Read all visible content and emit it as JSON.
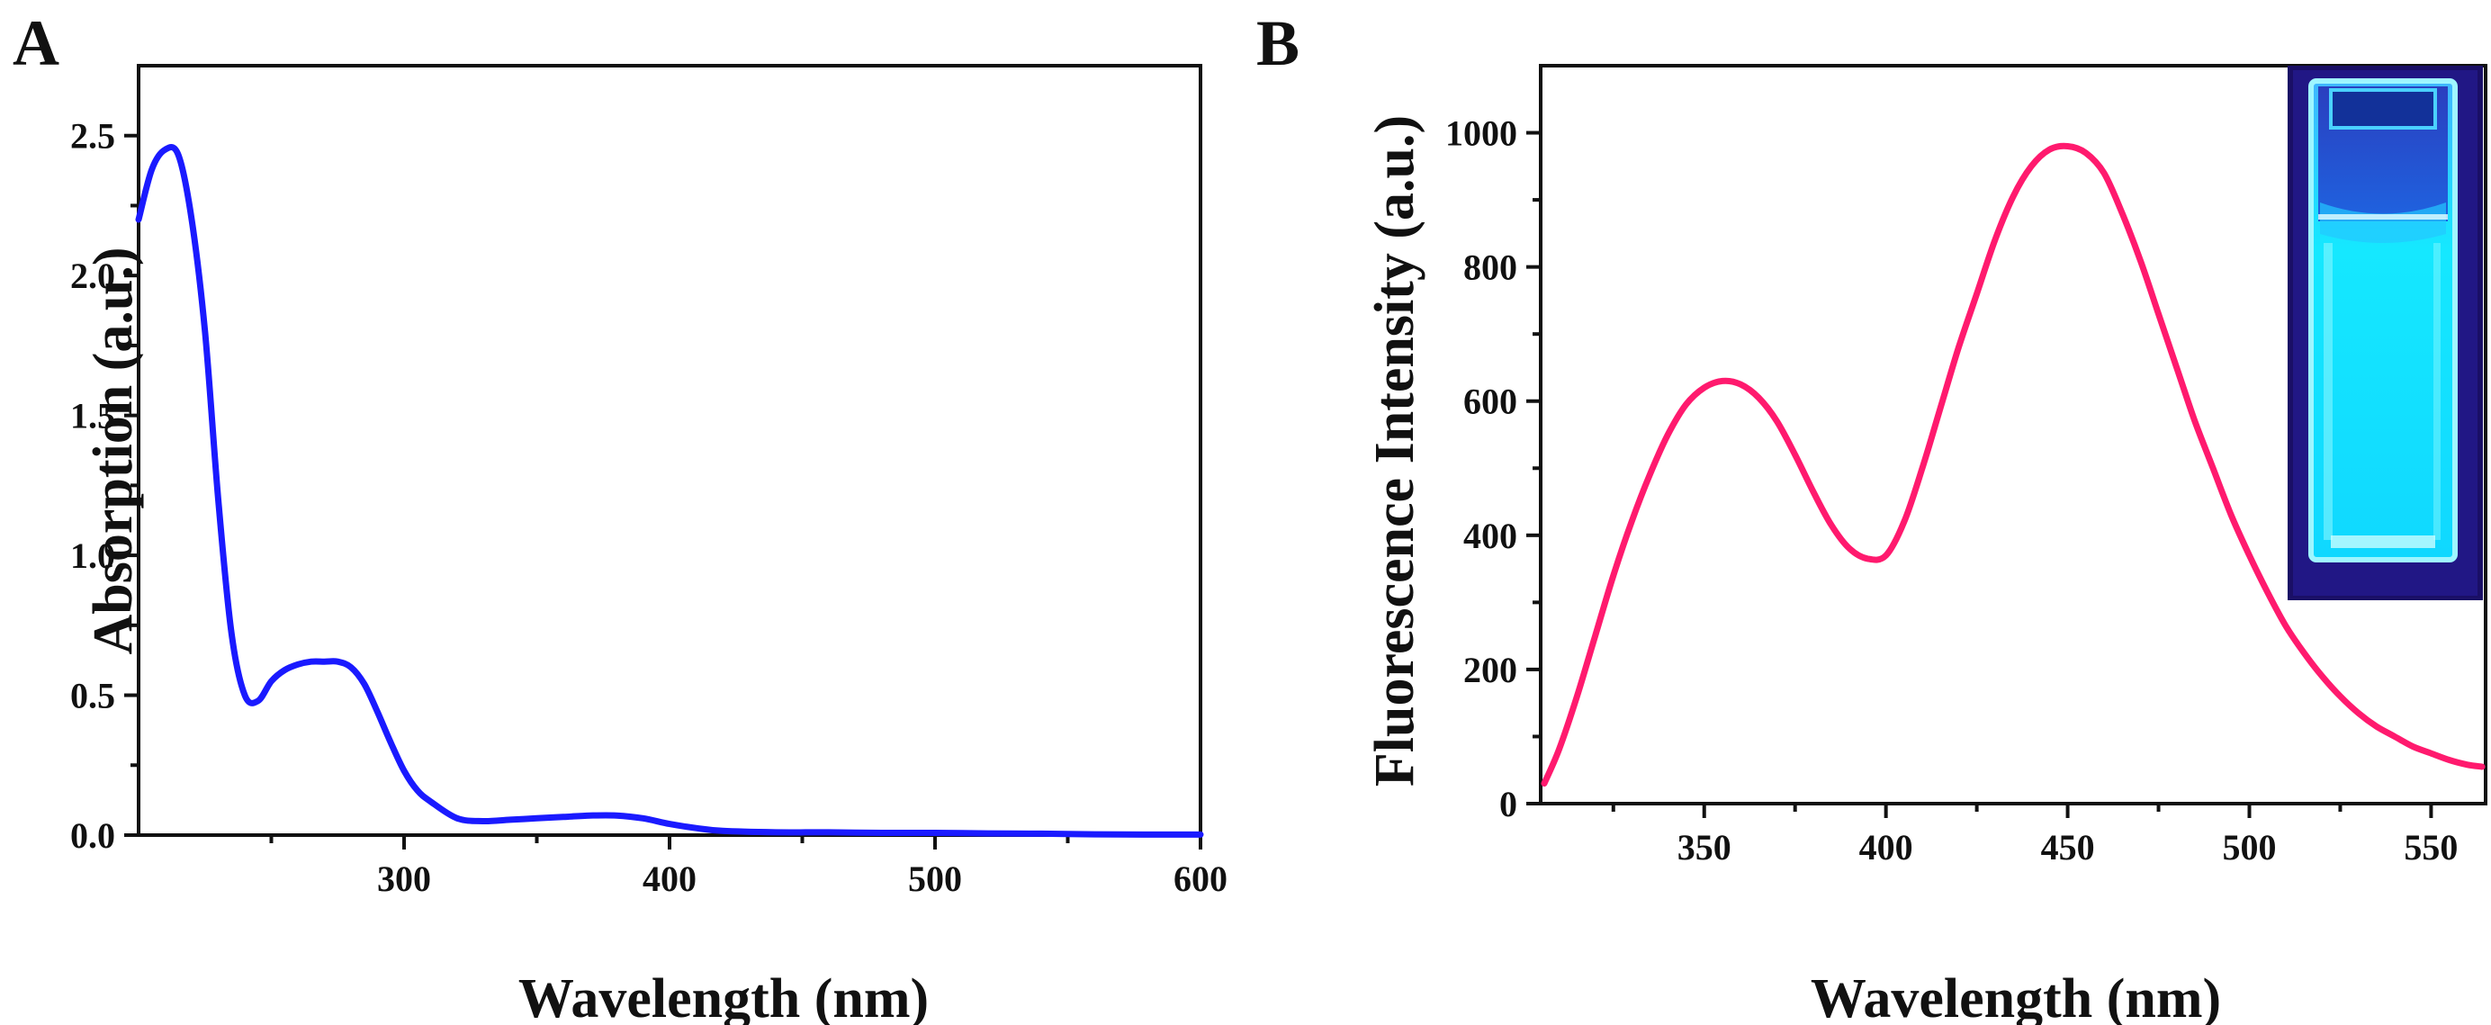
{
  "panels": {
    "a": {
      "label": "A"
    },
    "b": {
      "label": "B"
    }
  },
  "chart_data": [
    {
      "id": "a",
      "type": "line",
      "title": "",
      "xlabel": "Wavelength (nm)",
      "ylabel": "Absorption (a.u.)",
      "xlim": [
        200,
        600
      ],
      "ylim": [
        0,
        2.75
      ],
      "xticks": [
        300,
        400,
        500,
        600
      ],
      "xminor": [
        250,
        350,
        450,
        550
      ],
      "yticks": [
        0.0,
        0.5,
        1.0,
        1.5,
        2.0,
        2.5
      ],
      "yminor": [
        0.25,
        0.75,
        1.25,
        1.75,
        2.25
      ],
      "ytick_format": 1,
      "grid": false,
      "color": "#1a1aff",
      "series": [
        {
          "name": "Absorption",
          "x": [
            200,
            205,
            210,
            215,
            220,
            225,
            230,
            235,
            240,
            245,
            250,
            255,
            260,
            265,
            270,
            275,
            280,
            285,
            290,
            295,
            300,
            305,
            310,
            320,
            330,
            340,
            350,
            360,
            370,
            380,
            390,
            400,
            410,
            420,
            440,
            460,
            480,
            500,
            520,
            540,
            560,
            580,
            600
          ],
          "y": [
            2.2,
            2.38,
            2.45,
            2.43,
            2.2,
            1.8,
            1.2,
            0.72,
            0.5,
            0.48,
            0.55,
            0.59,
            0.61,
            0.62,
            0.62,
            0.62,
            0.6,
            0.54,
            0.44,
            0.33,
            0.23,
            0.16,
            0.12,
            0.06,
            0.05,
            0.055,
            0.06,
            0.065,
            0.07,
            0.07,
            0.06,
            0.04,
            0.025,
            0.015,
            0.01,
            0.01,
            0.008,
            0.008,
            0.006,
            0.005,
            0.003,
            0.002,
            0.002
          ]
        }
      ]
    },
    {
      "id": "b",
      "type": "line",
      "title": "",
      "xlabel": "Wavelength (nm)",
      "ylabel": "Fluorescence Intensity (a.u.)",
      "xlim": [
        305,
        565
      ],
      "ylim": [
        0,
        1100
      ],
      "xticks": [
        350,
        400,
        450,
        500,
        550
      ],
      "xminor": [
        325,
        375,
        425,
        475,
        525
      ],
      "yticks": [
        0,
        200,
        400,
        600,
        800,
        1000
      ],
      "yminor": [
        100,
        300,
        500,
        700,
        900
      ],
      "ytick_format": 0,
      "grid": false,
      "color": "#ff1a6e",
      "inset": "cuvette-photo-glowing-blue",
      "series": [
        {
          "name": "Fluorescence",
          "x": [
            306,
            310,
            315,
            320,
            325,
            330,
            335,
            340,
            345,
            350,
            355,
            360,
            365,
            370,
            375,
            380,
            385,
            390,
            395,
            400,
            405,
            410,
            415,
            420,
            425,
            430,
            435,
            440,
            445,
            450,
            455,
            460,
            465,
            470,
            475,
            480,
            485,
            490,
            495,
            500,
            505,
            510,
            515,
            520,
            525,
            530,
            535,
            540,
            545,
            550,
            555,
            560,
            564
          ],
          "y": [
            30,
            80,
            160,
            250,
            340,
            420,
            490,
            550,
            595,
            620,
            630,
            625,
            605,
            570,
            520,
            465,
            415,
            380,
            365,
            370,
            420,
            500,
            590,
            680,
            760,
            840,
            905,
            950,
            975,
            980,
            970,
            940,
            880,
            810,
            730,
            650,
            570,
            500,
            430,
            370,
            315,
            265,
            225,
            190,
            160,
            135,
            115,
            100,
            85,
            75,
            65,
            58,
            55
          ]
        }
      ]
    }
  ]
}
